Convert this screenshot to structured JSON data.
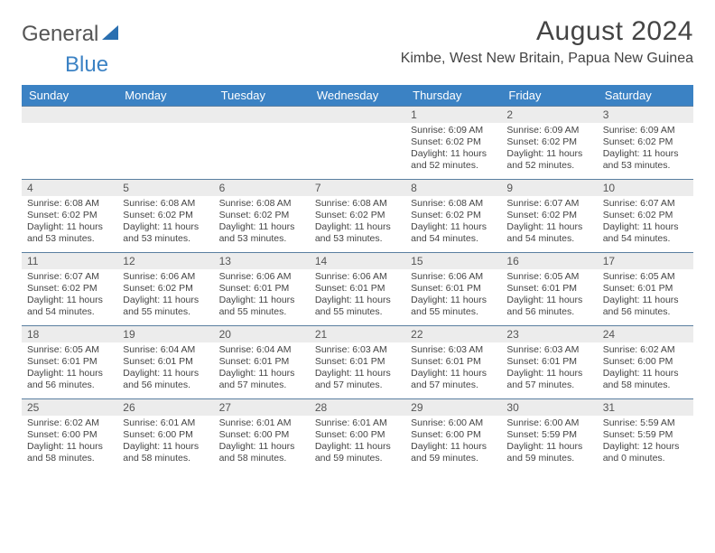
{
  "brand": {
    "part1": "General",
    "part2": "Blue"
  },
  "title": "August 2024",
  "location": "Kimbe, West New Britain, Papua New Guinea",
  "colors": {
    "header_bg": "#3b82c4",
    "header_text": "#ffffff",
    "daynum_bg": "#ececec",
    "week_border": "#5a7fa0",
    "text": "#444444"
  },
  "dow": [
    "Sunday",
    "Monday",
    "Tuesday",
    "Wednesday",
    "Thursday",
    "Friday",
    "Saturday"
  ],
  "weeks": [
    [
      {
        "n": "",
        "sr": "",
        "ss": "",
        "dl": ""
      },
      {
        "n": "",
        "sr": "",
        "ss": "",
        "dl": ""
      },
      {
        "n": "",
        "sr": "",
        "ss": "",
        "dl": ""
      },
      {
        "n": "",
        "sr": "",
        "ss": "",
        "dl": ""
      },
      {
        "n": "1",
        "sr": "6:09 AM",
        "ss": "6:02 PM",
        "dl": "11 hours and 52 minutes."
      },
      {
        "n": "2",
        "sr": "6:09 AM",
        "ss": "6:02 PM",
        "dl": "11 hours and 52 minutes."
      },
      {
        "n": "3",
        "sr": "6:09 AM",
        "ss": "6:02 PM",
        "dl": "11 hours and 53 minutes."
      }
    ],
    [
      {
        "n": "4",
        "sr": "6:08 AM",
        "ss": "6:02 PM",
        "dl": "11 hours and 53 minutes."
      },
      {
        "n": "5",
        "sr": "6:08 AM",
        "ss": "6:02 PM",
        "dl": "11 hours and 53 minutes."
      },
      {
        "n": "6",
        "sr": "6:08 AM",
        "ss": "6:02 PM",
        "dl": "11 hours and 53 minutes."
      },
      {
        "n": "7",
        "sr": "6:08 AM",
        "ss": "6:02 PM",
        "dl": "11 hours and 53 minutes."
      },
      {
        "n": "8",
        "sr": "6:08 AM",
        "ss": "6:02 PM",
        "dl": "11 hours and 54 minutes."
      },
      {
        "n": "9",
        "sr": "6:07 AM",
        "ss": "6:02 PM",
        "dl": "11 hours and 54 minutes."
      },
      {
        "n": "10",
        "sr": "6:07 AM",
        "ss": "6:02 PM",
        "dl": "11 hours and 54 minutes."
      }
    ],
    [
      {
        "n": "11",
        "sr": "6:07 AM",
        "ss": "6:02 PM",
        "dl": "11 hours and 54 minutes."
      },
      {
        "n": "12",
        "sr": "6:06 AM",
        "ss": "6:02 PM",
        "dl": "11 hours and 55 minutes."
      },
      {
        "n": "13",
        "sr": "6:06 AM",
        "ss": "6:01 PM",
        "dl": "11 hours and 55 minutes."
      },
      {
        "n": "14",
        "sr": "6:06 AM",
        "ss": "6:01 PM",
        "dl": "11 hours and 55 minutes."
      },
      {
        "n": "15",
        "sr": "6:06 AM",
        "ss": "6:01 PM",
        "dl": "11 hours and 55 minutes."
      },
      {
        "n": "16",
        "sr": "6:05 AM",
        "ss": "6:01 PM",
        "dl": "11 hours and 56 minutes."
      },
      {
        "n": "17",
        "sr": "6:05 AM",
        "ss": "6:01 PM",
        "dl": "11 hours and 56 minutes."
      }
    ],
    [
      {
        "n": "18",
        "sr": "6:05 AM",
        "ss": "6:01 PM",
        "dl": "11 hours and 56 minutes."
      },
      {
        "n": "19",
        "sr": "6:04 AM",
        "ss": "6:01 PM",
        "dl": "11 hours and 56 minutes."
      },
      {
        "n": "20",
        "sr": "6:04 AM",
        "ss": "6:01 PM",
        "dl": "11 hours and 57 minutes."
      },
      {
        "n": "21",
        "sr": "6:03 AM",
        "ss": "6:01 PM",
        "dl": "11 hours and 57 minutes."
      },
      {
        "n": "22",
        "sr": "6:03 AM",
        "ss": "6:01 PM",
        "dl": "11 hours and 57 minutes."
      },
      {
        "n": "23",
        "sr": "6:03 AM",
        "ss": "6:01 PM",
        "dl": "11 hours and 57 minutes."
      },
      {
        "n": "24",
        "sr": "6:02 AM",
        "ss": "6:00 PM",
        "dl": "11 hours and 58 minutes."
      }
    ],
    [
      {
        "n": "25",
        "sr": "6:02 AM",
        "ss": "6:00 PM",
        "dl": "11 hours and 58 minutes."
      },
      {
        "n": "26",
        "sr": "6:01 AM",
        "ss": "6:00 PM",
        "dl": "11 hours and 58 minutes."
      },
      {
        "n": "27",
        "sr": "6:01 AM",
        "ss": "6:00 PM",
        "dl": "11 hours and 58 minutes."
      },
      {
        "n": "28",
        "sr": "6:01 AM",
        "ss": "6:00 PM",
        "dl": "11 hours and 59 minutes."
      },
      {
        "n": "29",
        "sr": "6:00 AM",
        "ss": "6:00 PM",
        "dl": "11 hours and 59 minutes."
      },
      {
        "n": "30",
        "sr": "6:00 AM",
        "ss": "5:59 PM",
        "dl": "11 hours and 59 minutes."
      },
      {
        "n": "31",
        "sr": "5:59 AM",
        "ss": "5:59 PM",
        "dl": "12 hours and 0 minutes."
      }
    ]
  ],
  "labels": {
    "sunrise": "Sunrise:",
    "sunset": "Sunset:",
    "daylight": "Daylight:"
  }
}
